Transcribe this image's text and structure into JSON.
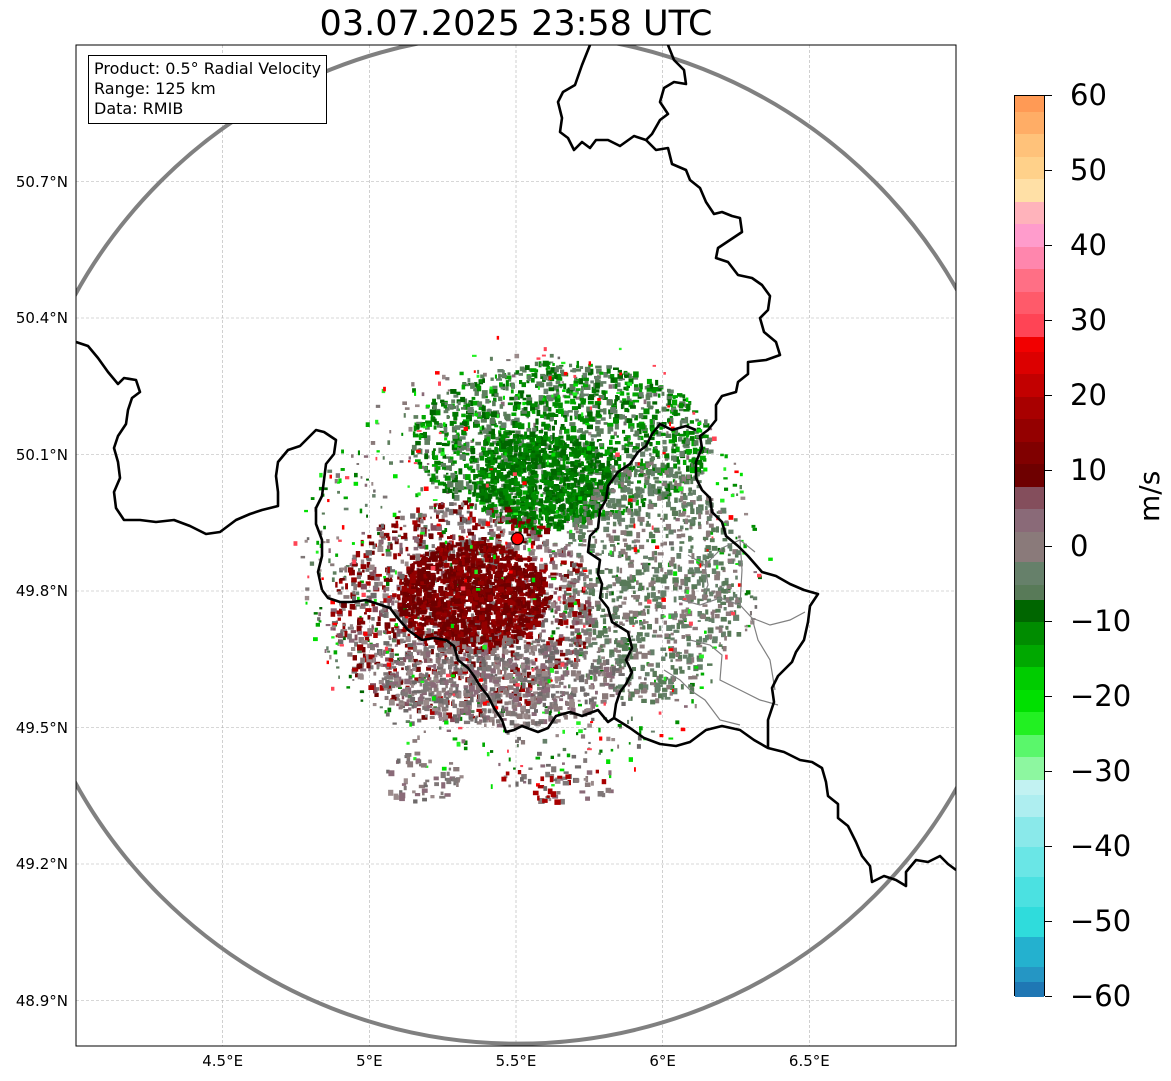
{
  "title": "03.07.2025 23:58 UTC",
  "info": {
    "product": "Product: 0.5° Radial Velocity",
    "range": "Range: 125 km",
    "data": "Data: RMIB"
  },
  "map": {
    "lon_range": [
      4.0,
      7.0
    ],
    "lat_range": [
      48.8,
      51.0
    ],
    "lat_ticks": [
      {
        "value": 50.7,
        "label": "50.7°N"
      },
      {
        "value": 50.4,
        "label": "50.4°N"
      },
      {
        "value": 50.1,
        "label": "50.1°N"
      },
      {
        "value": 49.8,
        "label": "49.8°N"
      },
      {
        "value": 49.5,
        "label": "49.5°N"
      },
      {
        "value": 49.2,
        "label": "49.2°N"
      },
      {
        "value": 48.9,
        "label": "48.9°N"
      }
    ],
    "lon_ticks": [
      {
        "value": 4.5,
        "label": "4.5°E"
      },
      {
        "value": 5.0,
        "label": "5°E"
      },
      {
        "value": 5.5,
        "label": "5.5°E"
      },
      {
        "value": 6.0,
        "label": "6°E"
      },
      {
        "value": 6.5,
        "label": "6.5°E"
      }
    ],
    "radar_site": {
      "lon": 5.505,
      "lat": 49.915
    },
    "range_ring_color": "#808080",
    "border_color": "#000000",
    "admin_border_color": "#808080",
    "grid": true
  },
  "colorbar": {
    "label": "m/s",
    "vmin": -60,
    "vmax": 60,
    "ticks": [
      "60",
      "50",
      "40",
      "30",
      "20",
      "10",
      "0",
      "−10",
      "−20",
      "−30",
      "−40",
      "−50",
      "−60"
    ],
    "tick_values": [
      60,
      50,
      40,
      30,
      20,
      10,
      0,
      -10,
      -20,
      -30,
      -40,
      -50,
      -60
    ],
    "stops": [
      {
        "from": -60,
        "to": -58,
        "color": "#1f77b4"
      },
      {
        "from": -58,
        "to": -56,
        "color": "#2596c4"
      },
      {
        "from": -56,
        "to": -52,
        "color": "#24b1cf"
      },
      {
        "from": -52,
        "to": -48,
        "color": "#2fdcdc"
      },
      {
        "from": -48,
        "to": -44,
        "color": "#4be1e1"
      },
      {
        "from": -44,
        "to": -40,
        "color": "#6ae6e6"
      },
      {
        "from": -40,
        "to": -36,
        "color": "#8ae9ea"
      },
      {
        "from": -36,
        "to": -33,
        "color": "#aeeef0"
      },
      {
        "from": -33,
        "to": -31,
        "color": "#c2f2f2"
      },
      {
        "from": -31,
        "to": -28,
        "color": "#8df7a0"
      },
      {
        "from": -28,
        "to": -25,
        "color": "#5af76b"
      },
      {
        "from": -25,
        "to": -22,
        "color": "#22f022"
      },
      {
        "from": -22,
        "to": -19,
        "color": "#00e000"
      },
      {
        "from": -19,
        "to": -16,
        "color": "#00cc00"
      },
      {
        "from": -16,
        "to": -13,
        "color": "#00a800"
      },
      {
        "from": -13,
        "to": -10,
        "color": "#008c00"
      },
      {
        "from": -10,
        "to": -7,
        "color": "#006600"
      },
      {
        "from": -7,
        "to": -5,
        "color": "#587a58"
      },
      {
        "from": -5,
        "to": -2,
        "color": "#66806a"
      },
      {
        "from": -2,
        "to": 2,
        "color": "#8a7a7a"
      },
      {
        "from": 2,
        "to": 5,
        "color": "#8a6a78"
      },
      {
        "from": 5,
        "to": 8,
        "color": "#844e5c"
      },
      {
        "from": 8,
        "to": 11,
        "color": "#6e0000"
      },
      {
        "from": 11,
        "to": 14,
        "color": "#800000"
      },
      {
        "from": 14,
        "to": 17,
        "color": "#940000"
      },
      {
        "from": 17,
        "to": 20,
        "color": "#a80000"
      },
      {
        "from": 20,
        "to": 23,
        "color": "#c20000"
      },
      {
        "from": 23,
        "to": 26,
        "color": "#dc0000"
      },
      {
        "from": 26,
        "to": 28,
        "color": "#f20000"
      },
      {
        "from": 28,
        "to": 31,
        "color": "#ff4455"
      },
      {
        "from": 31,
        "to": 34,
        "color": "#ff5a6a"
      },
      {
        "from": 34,
        "to": 37,
        "color": "#ff6f85"
      },
      {
        "from": 37,
        "to": 40,
        "color": "#ff86ad"
      },
      {
        "from": 40,
        "to": 43,
        "color": "#ff9ccc"
      },
      {
        "from": 43,
        "to": 46,
        "color": "#ffb3bb"
      },
      {
        "from": 46,
        "to": 49,
        "color": "#ffe0a6"
      },
      {
        "from": 49,
        "to": 52,
        "color": "#ffd18a"
      },
      {
        "from": 52,
        "to": 55,
        "color": "#ffc27a"
      },
      {
        "from": 55,
        "to": 58,
        "color": "#ffad66"
      },
      {
        "from": 58,
        "to": 60,
        "color": "#ff9a55"
      }
    ]
  }
}
